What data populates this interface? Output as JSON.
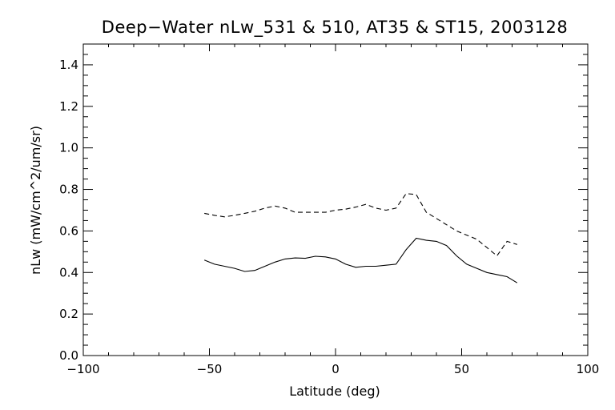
{
  "chart_data": {
    "type": "line",
    "title": "Deep−Water nLw_531 & 510, AT35 & ST15, 2003128",
    "xlabel": "Latitude (deg)",
    "ylabel": "nLw (mW/cm^2/um/sr)",
    "xlim": [
      -100,
      100
    ],
    "ylim": [
      0.0,
      1.5
    ],
    "xticks": [
      -100,
      -50,
      0,
      50,
      100
    ],
    "xtick_labels": [
      "−100",
      "−50",
      "0",
      "50",
      "100"
    ],
    "yticks": [
      0.0,
      0.2,
      0.4,
      0.6,
      0.8,
      1.0,
      1.2,
      1.4
    ],
    "ytick_labels": [
      "0.0",
      "0.2",
      "0.4",
      "0.6",
      "0.8",
      "1.0",
      "1.2",
      "1.4"
    ],
    "grid": false,
    "series": [
      {
        "style": "dashed",
        "x": [
          -52,
          -48,
          -44,
          -40,
          -36,
          -32,
          -28,
          -24,
          -20,
          -16,
          -12,
          -8,
          -4,
          0,
          4,
          8,
          12,
          16,
          20,
          24,
          28,
          32,
          36,
          40,
          44,
          48,
          52,
          56,
          60,
          64,
          68,
          72
        ],
        "y": [
          0.685,
          0.675,
          0.668,
          0.675,
          0.685,
          0.695,
          0.71,
          0.72,
          0.71,
          0.69,
          0.69,
          0.69,
          0.69,
          0.7,
          0.705,
          0.715,
          0.728,
          0.71,
          0.7,
          0.71,
          0.78,
          0.775,
          0.69,
          0.66,
          0.63,
          0.6,
          0.58,
          0.56,
          0.52,
          0.48,
          0.55,
          0.535
        ]
      },
      {
        "style": "solid",
        "x": [
          -52,
          -48,
          -44,
          -40,
          -36,
          -32,
          -28,
          -24,
          -20,
          -16,
          -12,
          -8,
          -4,
          0,
          4,
          8,
          12,
          16,
          20,
          24,
          28,
          32,
          36,
          40,
          44,
          48,
          52,
          56,
          60,
          64,
          68,
          72
        ],
        "y": [
          0.46,
          0.44,
          0.43,
          0.42,
          0.405,
          0.41,
          0.43,
          0.45,
          0.465,
          0.47,
          0.468,
          0.478,
          0.475,
          0.465,
          0.44,
          0.425,
          0.43,
          0.43,
          0.435,
          0.44,
          0.51,
          0.565,
          0.555,
          0.55,
          0.53,
          0.48,
          0.44,
          0.42,
          0.4,
          0.39,
          0.38,
          0.35
        ]
      }
    ]
  }
}
